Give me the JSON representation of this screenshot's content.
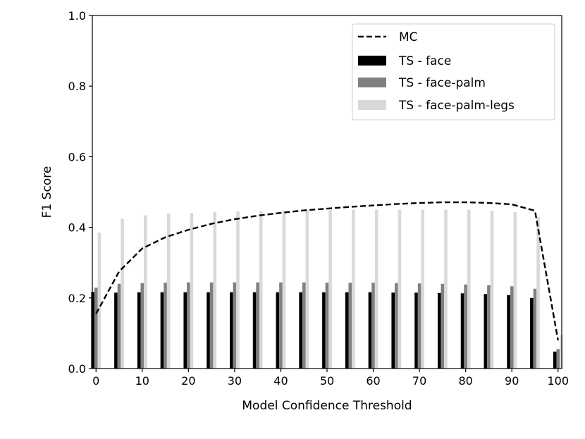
{
  "chart_data": {
    "type": "bar",
    "title": "",
    "xlabel": "Model Confidence Threshold",
    "ylabel": "F1 Score",
    "xlim": [
      -0.8,
      100.8
    ],
    "ylim": [
      0,
      1.0
    ],
    "x": [
      0,
      5,
      10,
      15,
      20,
      25,
      30,
      35,
      40,
      45,
      50,
      55,
      60,
      65,
      70,
      75,
      80,
      85,
      90,
      95,
      100
    ],
    "xticks": [
      0,
      10,
      20,
      30,
      40,
      50,
      60,
      70,
      80,
      90,
      100
    ],
    "xtick_labels": [
      "0",
      "10",
      "20",
      "30",
      "40",
      "50",
      "60",
      "70",
      "80",
      "90",
      "100"
    ],
    "yticks": [
      0.0,
      0.2,
      0.4,
      0.6,
      0.8,
      1.0
    ],
    "ytick_labels": [
      "0.0",
      "0.2",
      "0.4",
      "0.6",
      "0.8",
      "1.0"
    ],
    "legend_position": "top-right",
    "series": [
      {
        "name": "MC",
        "kind": "line",
        "style": "dashed",
        "color": "#000000",
        "values": [
          0.155,
          0.275,
          0.34,
          0.372,
          0.393,
          0.41,
          0.423,
          0.433,
          0.441,
          0.448,
          0.453,
          0.458,
          0.462,
          0.466,
          0.469,
          0.471,
          0.471,
          0.469,
          0.465,
          0.447,
          0.08
        ]
      },
      {
        "name": "TS - face",
        "kind": "bar",
        "color": "#000000",
        "values": [
          0.217,
          0.215,
          0.216,
          0.216,
          0.216,
          0.216,
          0.216,
          0.216,
          0.216,
          0.216,
          0.216,
          0.216,
          0.216,
          0.215,
          0.215,
          0.214,
          0.213,
          0.211,
          0.208,
          0.2,
          0.048
        ]
      },
      {
        "name": "TS - face-palm",
        "kind": "bar",
        "color": "#808080",
        "values": [
          0.229,
          0.24,
          0.242,
          0.243,
          0.244,
          0.244,
          0.244,
          0.244,
          0.244,
          0.244,
          0.243,
          0.243,
          0.243,
          0.242,
          0.241,
          0.24,
          0.238,
          0.236,
          0.233,
          0.226,
          0.055
        ]
      },
      {
        "name": "TS - face-palm-legs",
        "kind": "bar",
        "color": "#d9d9d9",
        "values": [
          0.385,
          0.424,
          0.434,
          0.439,
          0.441,
          0.443,
          0.445,
          0.446,
          0.447,
          0.448,
          0.449,
          0.45,
          0.45,
          0.45,
          0.45,
          0.45,
          0.449,
          0.447,
          0.443,
          0.43,
          0.095
        ]
      }
    ]
  }
}
